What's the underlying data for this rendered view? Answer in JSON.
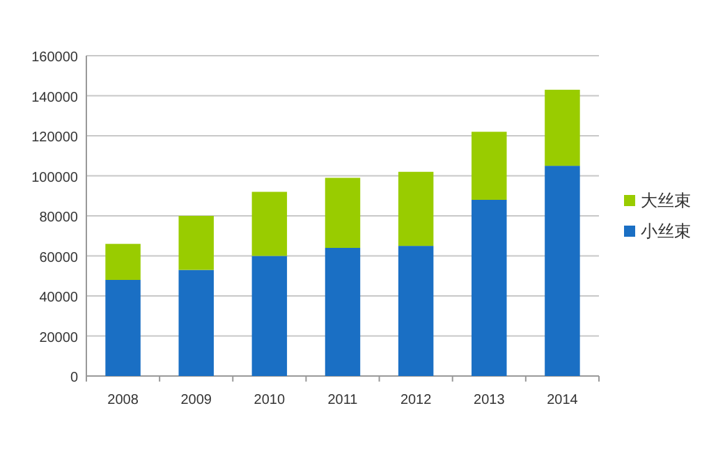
{
  "chart_data": {
    "type": "bar",
    "stacked": true,
    "categories": [
      "2008",
      "2009",
      "2010",
      "2011",
      "2012",
      "2013",
      "2014"
    ],
    "series": [
      {
        "name": "小丝束",
        "color": "#1a6fc4",
        "values": [
          48000,
          53000,
          60000,
          64000,
          65000,
          88000,
          105000
        ]
      },
      {
        "name": "大丝束",
        "color": "#99cc00",
        "values": [
          18000,
          27000,
          32000,
          35000,
          37000,
          34000,
          38000
        ]
      }
    ],
    "ylim": [
      0,
      160000
    ],
    "yticks": [
      0,
      20000,
      40000,
      60000,
      80000,
      100000,
      120000,
      140000,
      160000
    ],
    "grid": "y",
    "legend": "right"
  }
}
